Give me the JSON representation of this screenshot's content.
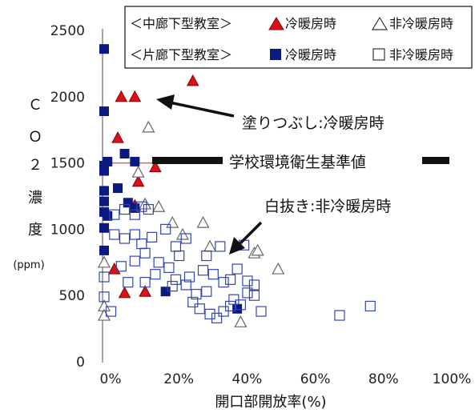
{
  "colors": {
    "red_fill": "#d9111a",
    "navy_fill": "#0a1a80",
    "hollow_stroke_blue": "#3345b0",
    "hollow_stroke_gray": "#666666",
    "axis": "#888888",
    "ref_line": "#e06060"
  },
  "chart_data": {
    "type": "scatter",
    "xlabel": "開口部開放率(%)",
    "ylabel_chars": [
      "Ｃ",
      "Ｏ",
      "２",
      "濃",
      "度"
    ],
    "ylabel_unit": "(ppm)",
    "xlim": [
      0,
      100
    ],
    "ylim": [
      0,
      2500
    ],
    "x_ticks": [
      0,
      20,
      40,
      60,
      80,
      100
    ],
    "x_tick_labels": [
      "0%",
      "20%",
      "40%",
      "60%",
      "80%",
      "100%"
    ],
    "y_ticks": [
      0,
      500,
      1000,
      1500,
      2000,
      2500
    ],
    "y_tick_labels": [
      "0",
      "500",
      "1000",
      "1500",
      "2000",
      "2500"
    ],
    "reference_line": {
      "y": 1500,
      "label": "学校環境衛生基準値"
    },
    "legend": {
      "row1": {
        "group": "＜中廊下型教室＞",
        "filled": "冷暖房時",
        "hollow": "非冷暖房時"
      },
      "row2": {
        "group": "＜片廊下型教室＞",
        "filled": "冷暖房時",
        "hollow": "非冷暖房時"
      }
    },
    "annotations": [
      {
        "text": "塗りつぶし:冷暖房時"
      },
      {
        "text": "白抜き:非冷暖房時"
      }
    ],
    "series": [
      {
        "name": "中廊下型教室 冷暖房時",
        "marker": "triangle-filled",
        "points": [
          [
            5,
            2000
          ],
          [
            9,
            2000
          ],
          [
            26,
            2120
          ],
          [
            4,
            1690
          ],
          [
            10,
            1360
          ],
          [
            15,
            1470
          ],
          [
            9,
            1180
          ],
          [
            3,
            700
          ],
          [
            6,
            520
          ],
          [
            12,
            530
          ]
        ]
      },
      {
        "name": "中廊下型教室 非冷暖房時",
        "marker": "triangle-hollow",
        "points": [
          [
            13,
            1770
          ],
          [
            10,
            1430
          ],
          [
            12,
            1190
          ],
          [
            16,
            1170
          ],
          [
            20,
            1050
          ],
          [
            29,
            1050
          ],
          [
            23,
            960
          ],
          [
            31,
            870
          ],
          [
            44,
            820
          ],
          [
            45,
            840
          ],
          [
            0,
            750
          ],
          [
            51,
            700
          ],
          [
            0,
            420
          ],
          [
            0,
            350
          ],
          [
            40,
            300
          ]
        ]
      },
      {
        "name": "片廊下型教室 冷暖房時",
        "marker": "square-filled",
        "points": [
          [
            0,
            2360
          ],
          [
            0,
            1890
          ],
          [
            0,
            1480
          ],
          [
            0,
            1440
          ],
          [
            1,
            1510
          ],
          [
            6,
            1570
          ],
          [
            9,
            1510
          ],
          [
            0,
            1290
          ],
          [
            4,
            1310
          ],
          [
            0,
            1210
          ],
          [
            0,
            1130
          ],
          [
            1,
            1100
          ],
          [
            7,
            1200
          ],
          [
            9,
            1160
          ],
          [
            0,
            1010
          ],
          [
            0,
            840
          ],
          [
            18,
            530
          ],
          [
            39,
            400
          ]
        ]
      },
      {
        "name": "片廊下型教室 非冷暖房時",
        "marker": "square-hollow",
        "points": [
          [
            0,
            640
          ],
          [
            0,
            490
          ],
          [
            3,
            1110
          ],
          [
            6,
            1150
          ],
          [
            9,
            1110
          ],
          [
            11,
            1170
          ],
          [
            13,
            1150
          ],
          [
            3,
            960
          ],
          [
            6,
            930
          ],
          [
            9,
            960
          ],
          [
            11,
            890
          ],
          [
            14,
            940
          ],
          [
            18,
            1000
          ],
          [
            21,
            870
          ],
          [
            24,
            930
          ],
          [
            22,
            800
          ],
          [
            19,
            710
          ],
          [
            16,
            750
          ],
          [
            12,
            820
          ],
          [
            9,
            760
          ],
          [
            5,
            720
          ],
          [
            15,
            660
          ],
          [
            21,
            620
          ],
          [
            24,
            580
          ],
          [
            27,
            510
          ],
          [
            30,
            530
          ],
          [
            26,
            450
          ],
          [
            28,
            400
          ],
          [
            31,
            360
          ],
          [
            33,
            330
          ],
          [
            35,
            380
          ],
          [
            37,
            420
          ],
          [
            38,
            470
          ],
          [
            40,
            430
          ],
          [
            42,
            520
          ],
          [
            44,
            580
          ],
          [
            46,
            380
          ],
          [
            29,
            690
          ],
          [
            32,
            660
          ],
          [
            35,
            600
          ],
          [
            37,
            620
          ],
          [
            39,
            700
          ],
          [
            42,
            610
          ],
          [
            44,
            500
          ],
          [
            20,
            570
          ],
          [
            25,
            640
          ],
          [
            30,
            800
          ],
          [
            34,
            870
          ],
          [
            69,
            350
          ],
          [
            78,
            420
          ],
          [
            2,
            380
          ],
          [
            7,
            600
          ],
          [
            12,
            600
          ],
          [
            41,
            880
          ]
        ]
      }
    ]
  }
}
